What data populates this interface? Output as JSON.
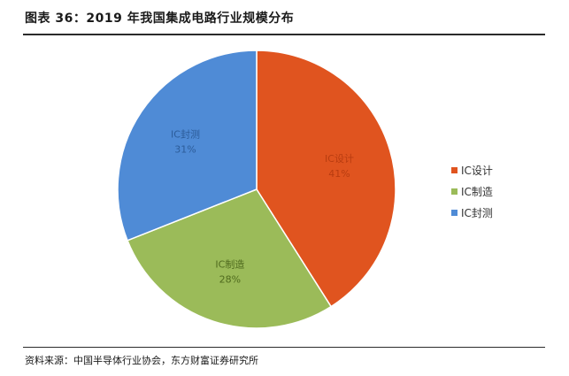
{
  "title": "图表 36：2019 年我国集成电路行业规模分布",
  "source": "资料来源：中国半导体行业协会，东方财富证券研究所",
  "colors": {
    "ic_design": "#E0541F",
    "ic_manufacturing": "#9BBB59",
    "ic_packaging_test": "#4F8BD6"
  },
  "chart_data": {
    "type": "pie",
    "title": "",
    "categories": [
      "IC设计",
      "IC制造",
      "IC封测"
    ],
    "values": [
      41,
      28,
      31
    ],
    "percent_labels": [
      "41%",
      "28%",
      "31%"
    ],
    "legend": [
      "IC设计",
      "IC制造",
      "IC封测"
    ],
    "legend_position": "right"
  }
}
